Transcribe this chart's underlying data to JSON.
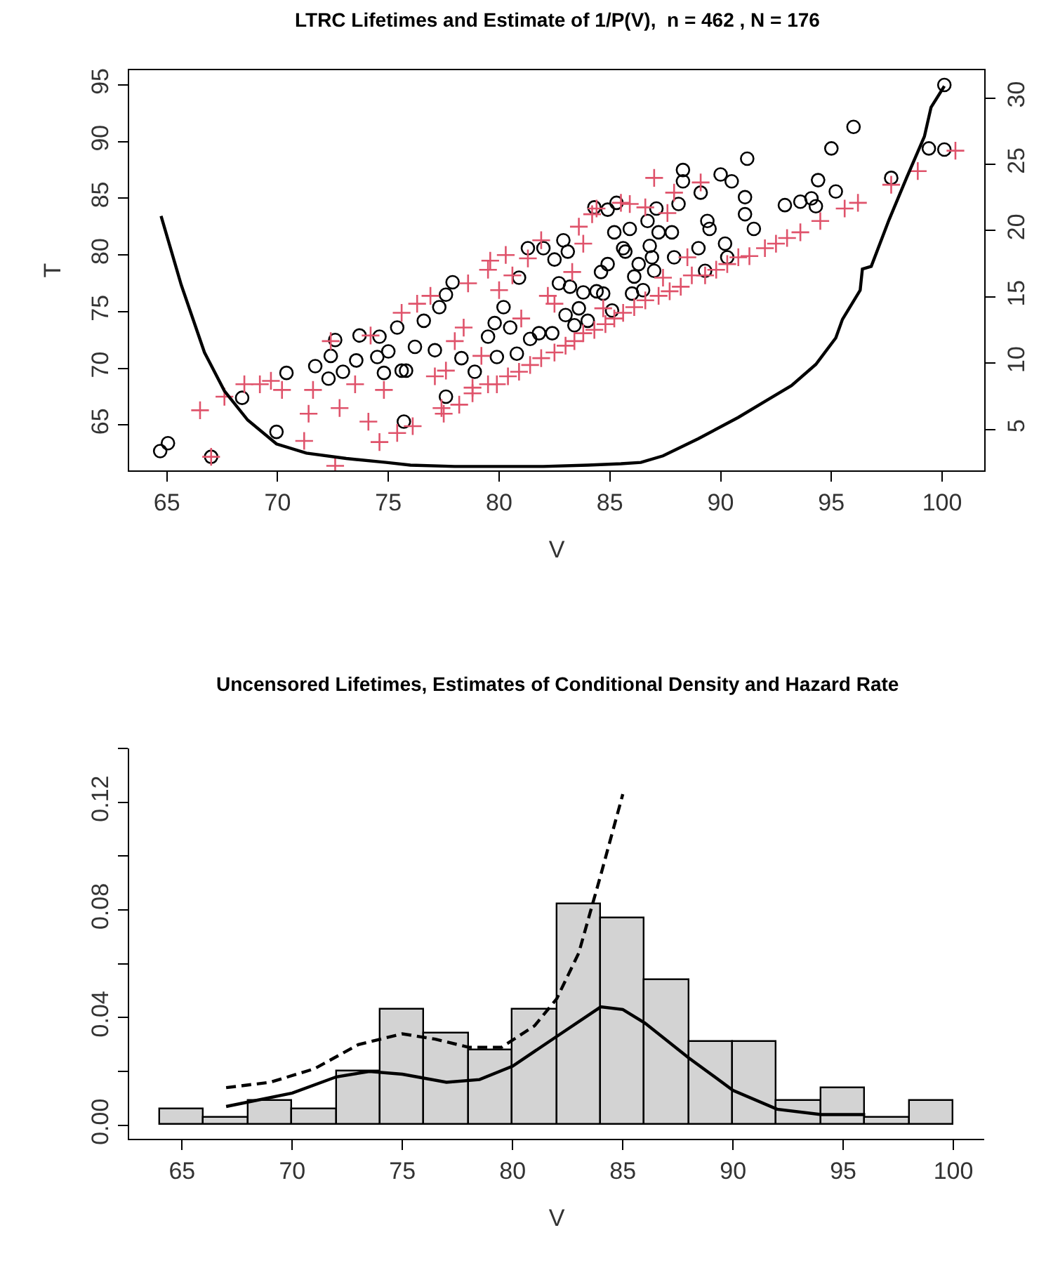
{
  "chart_data": [
    {
      "type": "scatter",
      "title": "LTRC Lifetimes and Estimate of 1/P(V),  n = 462 , N = 176",
      "xlabel": "V",
      "ylabel": "T",
      "xlim": [
        63.3,
        101.9
      ],
      "ylim": [
        61.0,
        96.3
      ],
      "y2lim": [
        1.9,
        32.1
      ],
      "xticks": [
        65,
        70,
        75,
        80,
        85,
        90,
        95,
        100
      ],
      "yticks": [
        65,
        70,
        75,
        80,
        85,
        90,
        95
      ],
      "y2ticks": [
        5,
        10,
        15,
        20,
        25,
        30
      ],
      "series": [
        {
          "marker": "circle",
          "color": "#000000",
          "x": [
            64.7,
            65.05,
            67.0,
            69.95,
            68.4,
            70.4,
            71.7,
            72.3,
            72.4,
            72.6,
            72.95,
            73.55,
            73.7,
            74.5,
            74.6,
            74.8,
            75.0,
            75.4,
            75.6,
            75.7,
            75.8,
            76.2,
            76.6,
            77.1,
            77.3,
            77.6,
            77.6,
            77.9,
            78.3,
            78.9,
            79.5,
            79.8,
            79.9,
            80.2,
            80.5,
            80.8,
            80.9,
            81.3,
            81.4,
            81.8,
            82.0,
            82.4,
            82.5,
            82.7,
            82.9,
            83.0,
            83.1,
            83.2,
            83.4,
            83.6,
            83.8,
            84.0,
            84.3,
            84.4,
            84.6,
            84.7,
            84.9,
            84.9,
            85.1,
            85.2,
            85.3,
            85.6,
            85.7,
            85.9,
            86.0,
            86.1,
            86.3,
            86.5,
            86.7,
            86.8,
            86.9,
            87.0,
            87.1,
            87.2,
            87.8,
            87.9,
            88.1,
            88.3,
            88.3,
            89.0,
            89.1,
            89.3,
            89.4,
            89.5,
            90.0,
            90.2,
            90.3,
            90.5,
            91.1,
            91.1,
            91.2,
            91.5,
            92.9,
            93.6,
            94.1,
            94.3,
            94.4,
            95.0,
            95.2,
            96.0,
            97.7,
            99.4,
            100.1,
            100.1
          ],
          "values": [
            62.7,
            63.4,
            62.2,
            64.4,
            67.4,
            69.6,
            70.2,
            69.1,
            71.1,
            72.5,
            69.7,
            70.7,
            72.9,
            71.0,
            72.8,
            69.6,
            71.5,
            73.6,
            69.8,
            65.3,
            69.8,
            71.9,
            74.2,
            71.6,
            75.4,
            76.5,
            67.5,
            77.6,
            70.9,
            69.7,
            72.8,
            74.0,
            71.0,
            75.4,
            73.6,
            71.3,
            78.0,
            80.6,
            72.6,
            73.1,
            80.6,
            73.1,
            79.6,
            77.5,
            81.3,
            74.7,
            80.3,
            77.2,
            73.8,
            75.3,
            76.7,
            74.2,
            84.2,
            76.8,
            78.5,
            76.6,
            79.2,
            84.0,
            75.1,
            82.0,
            84.6,
            80.6,
            80.3,
            82.3,
            76.6,
            78.1,
            79.2,
            76.9,
            83.0,
            80.8,
            79.8,
            78.6,
            84.1,
            82.0,
            82.0,
            79.8,
            84.5,
            87.5,
            86.5,
            80.6,
            85.5,
            78.6,
            83.0,
            82.3,
            87.1,
            81.0,
            79.8,
            86.5,
            83.6,
            85.1,
            88.5,
            82.3,
            84.4,
            84.7,
            85.0,
            84.3,
            86.6,
            89.4,
            85.6,
            91.3,
            86.8,
            89.4,
            89.3,
            95.0
          ]
        },
        {
          "marker": "cross",
          "color": "#df536b",
          "x": [
            67.0,
            72.6,
            66.5,
            67.6,
            68.5,
            69.2,
            69.7,
            70.2,
            71.2,
            71.4,
            71.6,
            72.4,
            72.8,
            73.5,
            74.1,
            74.2,
            74.6,
            74.8,
            75.4,
            75.6,
            76.1,
            76.3,
            76.9,
            77.1,
            77.4,
            77.6,
            78.0,
            78.4,
            78.6,
            78.8,
            79.2,
            79.5,
            79.6,
            80.0,
            80.3,
            80.6,
            81.0,
            81.3,
            81.9,
            82.2,
            82.5,
            83.3,
            83.6,
            83.8,
            84.2,
            84.4,
            84.7,
            85.5,
            85.9,
            86.6,
            87.0,
            87.4,
            87.6,
            87.9,
            88.5,
            88.7,
            89.1,
            90.8,
            94.5,
            95.6,
            96.2,
            97.7,
            98.9,
            100.6,
            77.5,
            78.2,
            78.8,
            79.5,
            79.9,
            80.4,
            80.9,
            81.4,
            81.9,
            82.5,
            83.0,
            83.4,
            83.8,
            84.3,
            84.8,
            85.2,
            85.6,
            86.1,
            86.6,
            87.2,
            87.7,
            88.2,
            89.3,
            89.8,
            90.3,
            91.3,
            92.0,
            92.5,
            93.0,
            93.6
          ],
          "values": [
            62.2,
            61.4,
            66.3,
            67.5,
            68.6,
            68.6,
            68.9,
            68.1,
            63.6,
            66.0,
            68.1,
            72.4,
            66.5,
            68.6,
            65.3,
            72.9,
            63.5,
            68.1,
            64.3,
            74.9,
            64.9,
            75.7,
            76.4,
            69.3,
            66.5,
            69.8,
            72.4,
            73.6,
            77.5,
            68.3,
            71.1,
            78.7,
            79.5,
            76.9,
            80.0,
            78.2,
            74.4,
            79.7,
            81.3,
            76.4,
            75.7,
            78.5,
            82.5,
            81.0,
            83.6,
            84.1,
            75.3,
            84.6,
            84.5,
            84.2,
            86.8,
            78.0,
            83.7,
            85.5,
            79.8,
            78.2,
            86.4,
            79.8,
            83.0,
            84.1,
            84.6,
            86.2,
            87.4,
            89.2,
            66.0,
            66.8,
            67.8,
            68.6,
            68.6,
            69.3,
            69.7,
            70.3,
            70.9,
            71.4,
            72.0,
            72.4,
            73.1,
            73.4,
            73.9,
            74.4,
            74.9,
            75.4,
            76.0,
            76.4,
            76.8,
            77.2,
            78.2,
            78.7,
            79.2,
            79.9,
            80.6,
            81.0,
            81.5,
            82.0
          ]
        },
        {
          "type": "line",
          "axis": "y2",
          "color": "#000000",
          "marker": "none",
          "line_style": "solid",
          "x": [
            64.74,
            65.65,
            66.7,
            67.6,
            68.65,
            69.95,
            71.3,
            73.1,
            74.9,
            76.0,
            78.0,
            80.0,
            82.0,
            84.0,
            85.5,
            86.4,
            87.4,
            89.0,
            90.8,
            92.1,
            93.2,
            94.3,
            95.2,
            95.5,
            96.3,
            96.4,
            96.8,
            97.6,
            98.4,
            99.2,
            99.5,
            100.1
          ],
          "values": [
            21.1,
            15.9,
            10.8,
            7.9,
            5.7,
            3.9,
            3.2,
            2.8,
            2.5,
            2.3,
            2.2,
            2.2,
            2.2,
            2.3,
            2.4,
            2.5,
            3.0,
            4.3,
            5.9,
            7.2,
            8.3,
            9.9,
            11.9,
            13.3,
            15.5,
            17.1,
            17.3,
            20.8,
            24.0,
            27.1,
            29.3,
            30.9
          ]
        }
      ]
    },
    {
      "type": "histogram",
      "title": "Uncensored Lifetimes, Estimates of Conditional Density and Hazard Rate",
      "xlabel": "V",
      "xlim": [
        62.6,
        101.4
      ],
      "ylim": [
        -0.005,
        0.14
      ],
      "xticks": [
        65,
        70,
        75,
        80,
        85,
        90,
        95,
        100
      ],
      "yticks": [
        {
          "value": 0,
          "label": "0.00"
        },
        {
          "value": 0.02,
          "label": null
        },
        0.04,
        {
          "value": 0.06,
          "label": null
        },
        0.08,
        {
          "value": 0.1,
          "label": null
        },
        0.12,
        {
          "value": 0.14,
          "label": null
        }
      ],
      "color": "#d3d3d3",
      "bins": [
        64,
        66,
        68,
        70,
        72,
        74,
        76,
        78,
        80,
        82,
        84,
        86,
        88,
        90,
        92,
        94,
        96,
        98,
        100
      ],
      "values": [
        0.006,
        0.003,
        0.009,
        0.006,
        0.02,
        0.043,
        0.034,
        0.028,
        0.043,
        0.082,
        0.077,
        0.054,
        0.031,
        0.031,
        0.009,
        0.014,
        0.003,
        0.009
      ],
      "series": [
        {
          "type": "line",
          "color": "#000000",
          "line_style": "solid",
          "x": [
            67,
            70,
            72,
            73.5,
            75,
            77,
            78.5,
            80,
            82,
            84,
            85,
            86,
            88,
            90,
            92,
            94,
            96
          ],
          "values": [
            0.007,
            0.012,
            0.018,
            0.02,
            0.019,
            0.016,
            0.017,
            0.022,
            0.033,
            0.044,
            0.043,
            0.038,
            0.025,
            0.013,
            0.006,
            0.004,
            0.004
          ]
        },
        {
          "type": "line",
          "color": "#000000",
          "line_style": "dashed",
          "x": [
            67,
            69,
            71,
            73,
            75,
            76.5,
            78,
            79.5,
            81,
            82,
            83,
            84,
            85
          ],
          "values": [
            0.014,
            0.016,
            0.021,
            0.03,
            0.034,
            0.032,
            0.029,
            0.029,
            0.037,
            0.047,
            0.064,
            0.093,
            0.123
          ]
        }
      ]
    }
  ]
}
